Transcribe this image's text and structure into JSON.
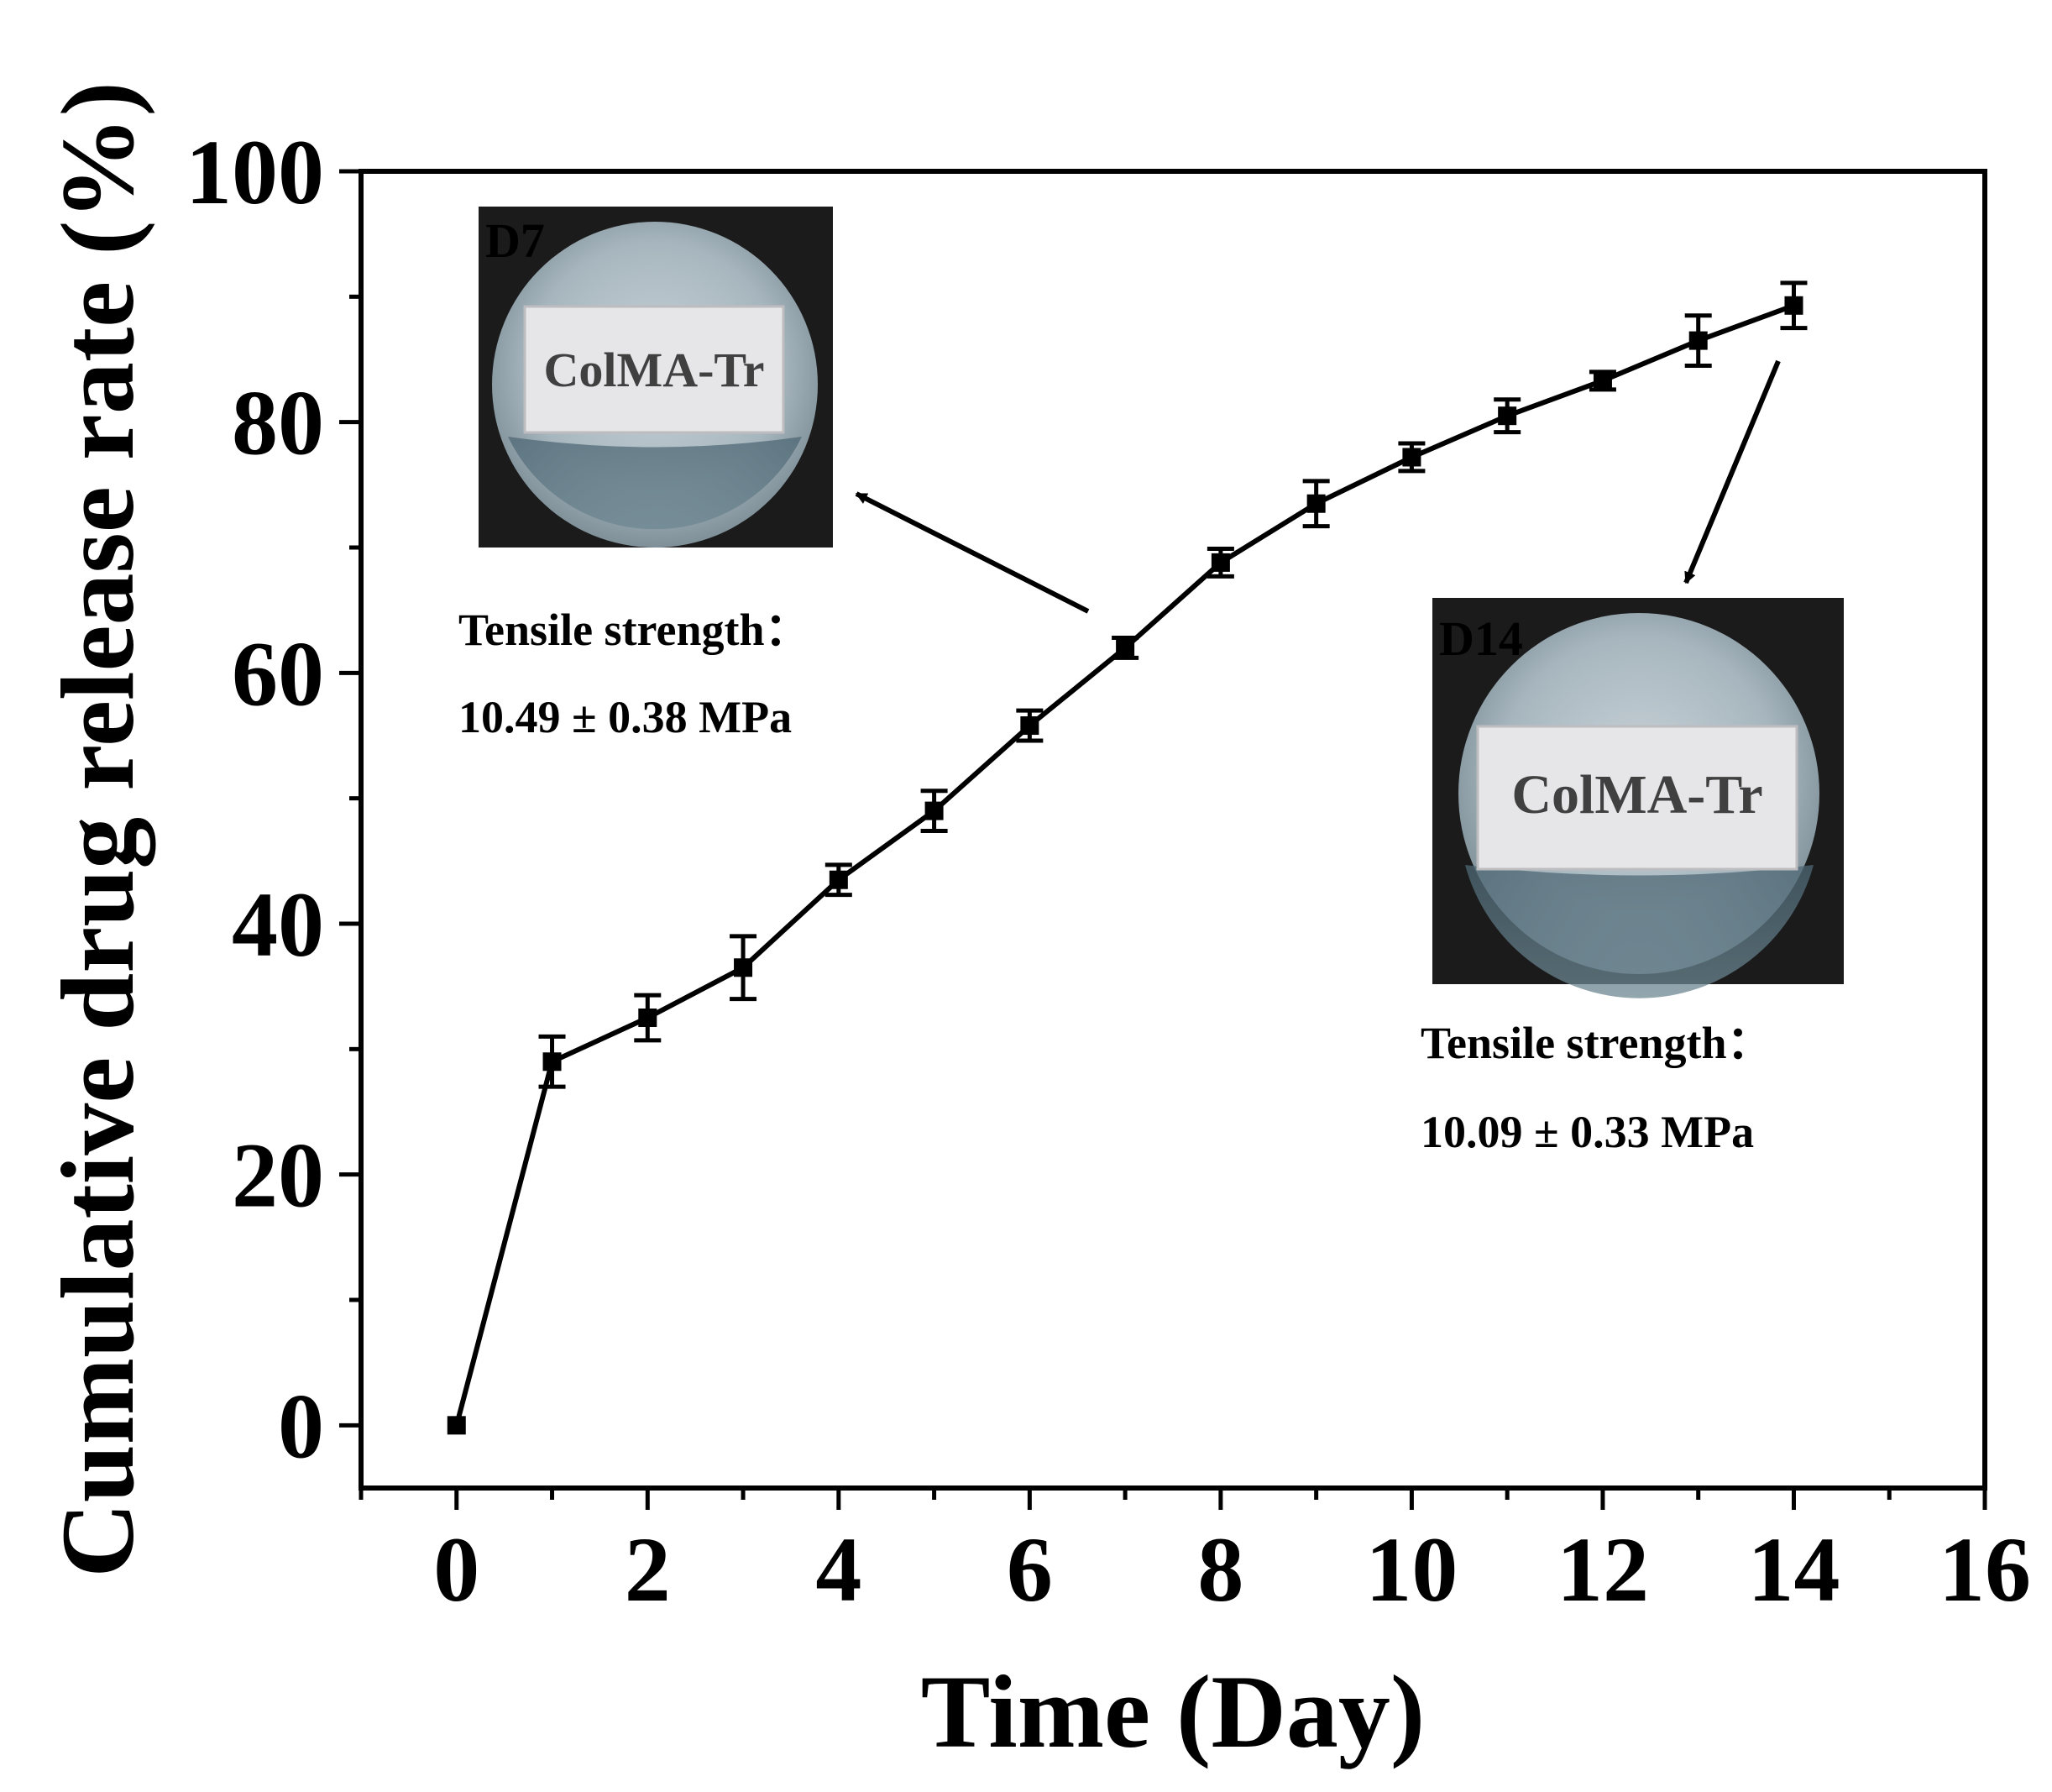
{
  "chart_data": {
    "type": "line",
    "xlabel": "Time (Day)",
    "ylabel": "Cumulative drug release rate (%)",
    "xlim": [
      -1,
      16
    ],
    "ylim": [
      -5,
      100
    ],
    "xticks": [
      0,
      2,
      4,
      6,
      8,
      10,
      12,
      14,
      16
    ],
    "yticks": [
      0,
      20,
      40,
      60,
      80,
      100
    ],
    "grid": false,
    "marker": "square",
    "line_color": "#000000",
    "x": [
      0,
      1,
      2,
      3,
      4,
      5,
      6,
      7,
      8,
      9,
      10,
      11,
      12,
      13,
      14
    ],
    "values": [
      0,
      29.0,
      32.5,
      36.5,
      43.5,
      49.0,
      55.8,
      62.0,
      68.8,
      73.5,
      77.2,
      80.5,
      83.3,
      86.5,
      89.3
    ],
    "errors": [
      0,
      2.0,
      1.8,
      2.5,
      1.2,
      1.6,
      1.2,
      0.8,
      1.1,
      1.8,
      1.1,
      1.3,
      0.7,
      2.0,
      1.8
    ],
    "annotations": [
      {
        "photo_tag": "D7",
        "photo_label": "ColMA-Tr",
        "text_line1": "Tensile strength：",
        "text_line2": "10.49 ± 0.38 MPa",
        "points_to_x": 7
      },
      {
        "photo_tag": "D14",
        "photo_label": "ColMA-Tr",
        "text_line1": "Tensile strength：",
        "text_line2": "10.09 ± 0.33 MPa",
        "points_to_x": 14
      }
    ]
  }
}
